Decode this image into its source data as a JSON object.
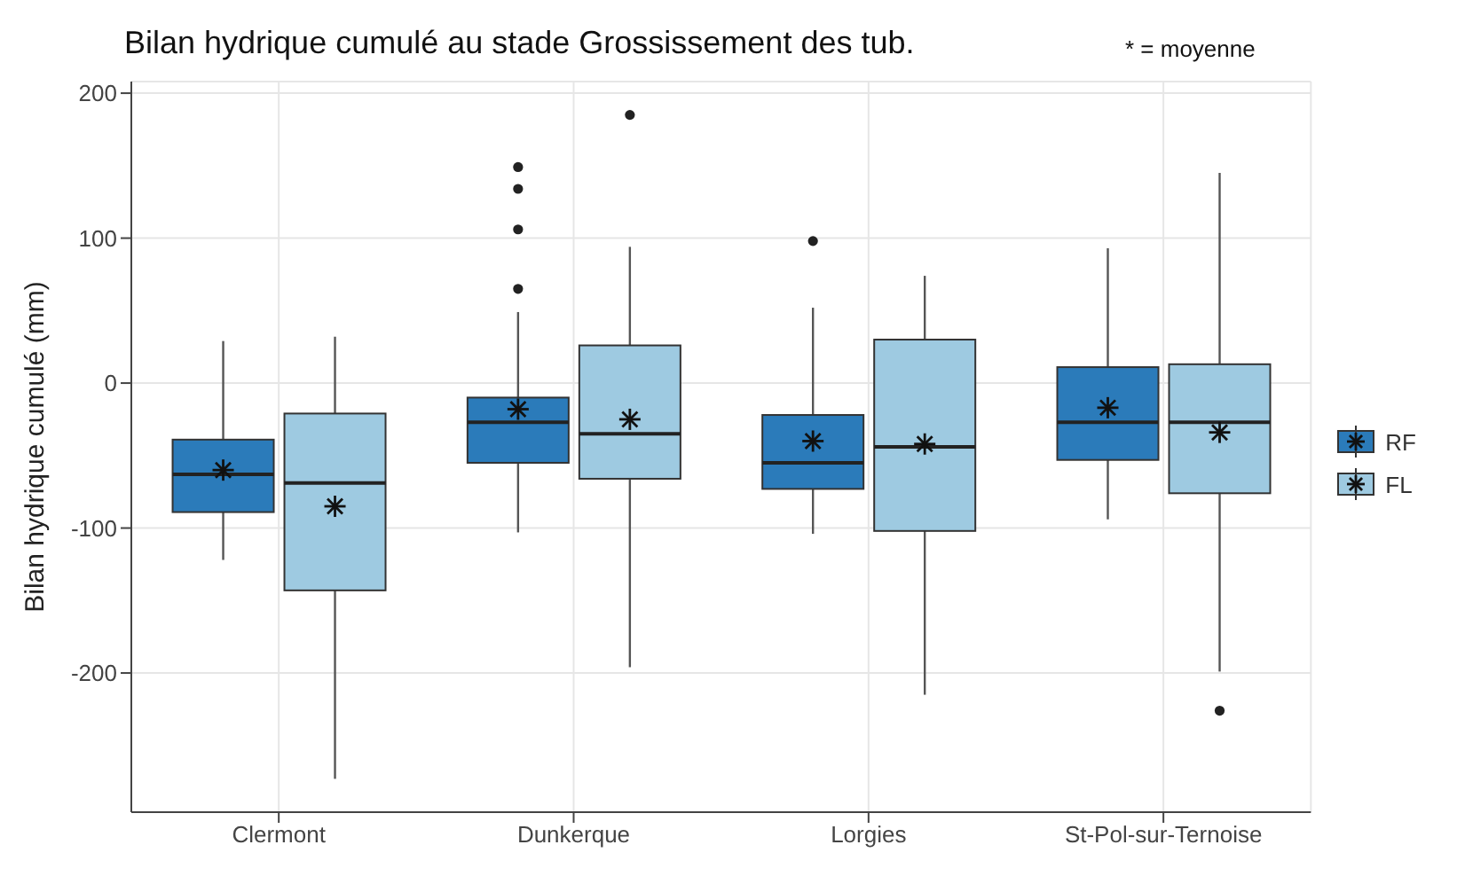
{
  "chart_data": {
    "type": "box",
    "title": "Bilan hydrique cumulé au stade Grossissement des tub.",
    "annotations": [
      "* = moyenne"
    ],
    "ylabel": "Bilan hydrique cumulé (mm)",
    "categories": [
      "Clermont",
      "Dunkerque",
      "Lorgies",
      "St-Pol-sur-Ternoise"
    ],
    "series": [
      {
        "name": "RF",
        "color": "#2b7bba",
        "boxes": [
          {
            "low": -122,
            "q1": -89,
            "median": -63,
            "q3": -39,
            "high": 29,
            "mean": -60
          },
          {
            "low": -103,
            "q1": -55,
            "median": -27,
            "q3": -10,
            "high": 49,
            "mean": -18,
            "outliers": [
              65,
              106,
              134,
              149
            ]
          },
          {
            "low": -104,
            "q1": -73,
            "median": -55,
            "q3": -22,
            "high": 52,
            "mean": -40,
            "outliers": [
              98
            ]
          },
          {
            "low": -94,
            "q1": -53,
            "median": -27,
            "q3": 11,
            "high": 93,
            "mean": -17
          }
        ]
      },
      {
        "name": "FL",
        "color": "#9ecae1",
        "boxes": [
          {
            "low": -273,
            "q1": -143,
            "median": -69,
            "q3": -21,
            "high": 32,
            "mean": -85
          },
          {
            "low": -196,
            "q1": -66,
            "median": -35,
            "q3": 26,
            "high": 94,
            "mean": -25,
            "outliers": [
              185
            ]
          },
          {
            "low": -215,
            "q1": -102,
            "median": -44,
            "q3": 30,
            "high": 74,
            "mean": -42
          },
          {
            "low": -199,
            "q1": -76,
            "median": -27,
            "q3": 13,
            "high": 145,
            "mean": -34,
            "outliers": [
              -226
            ]
          }
        ]
      }
    ],
    "ylim": [
      -296,
      208
    ],
    "yticks": [
      -200,
      -100,
      0,
      100,
      200
    ],
    "grid": true,
    "legend": "right"
  }
}
